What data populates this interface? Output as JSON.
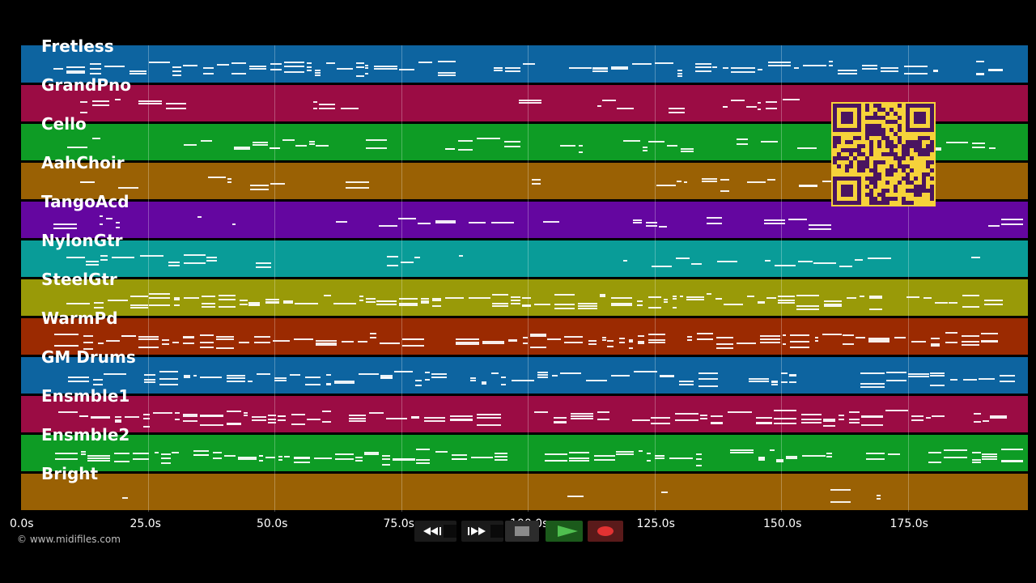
{
  "tracks": [
    {
      "name": "Fretless",
      "color": "#0d64a0"
    },
    {
      "name": "GrandPno",
      "color": "#9b0c44"
    },
    {
      "name": "Cello",
      "color": "#0e9c25"
    },
    {
      "name": "AahChoir",
      "color": "#9a6104"
    },
    {
      "name": "TangoAcd",
      "color": "#6406a0"
    },
    {
      "name": "NylonGtr",
      "color": "#099c98"
    },
    {
      "name": "SteelGtr",
      "color": "#999a08"
    },
    {
      "name": "WarmPd",
      "color": "#9b2a01"
    },
    {
      "name": "GM Drums",
      "color": "#0d64a0"
    },
    {
      "name": "Ensmble1",
      "color": "#9b0c44"
    },
    {
      "name": "Ensmble2",
      "color": "#0e9c25"
    },
    {
      "name": "Bright",
      "color": "#9a6104"
    }
  ],
  "time_axis": {
    "ticks": [
      "0.0s",
      "25.0s",
      "50.0s",
      "75.0s",
      "100.0s",
      "125.0s",
      "150.0s",
      "175.0s"
    ],
    "tick_seconds": [
      0,
      25,
      50,
      75,
      100,
      125,
      150,
      175
    ]
  },
  "copyright": "© www.midifiles.com",
  "transport": {
    "rewind": "rewind-icon",
    "fast_forward": "fast-forward-icon",
    "stop": "stop-icon",
    "play": "play-icon",
    "record": "record-icon"
  },
  "colors": {
    "background": "#000000",
    "qr_background": "#f6d23a",
    "qr_modules": "#4a1460",
    "play_button": "#2e8b2e",
    "record_button": "#e23232"
  }
}
